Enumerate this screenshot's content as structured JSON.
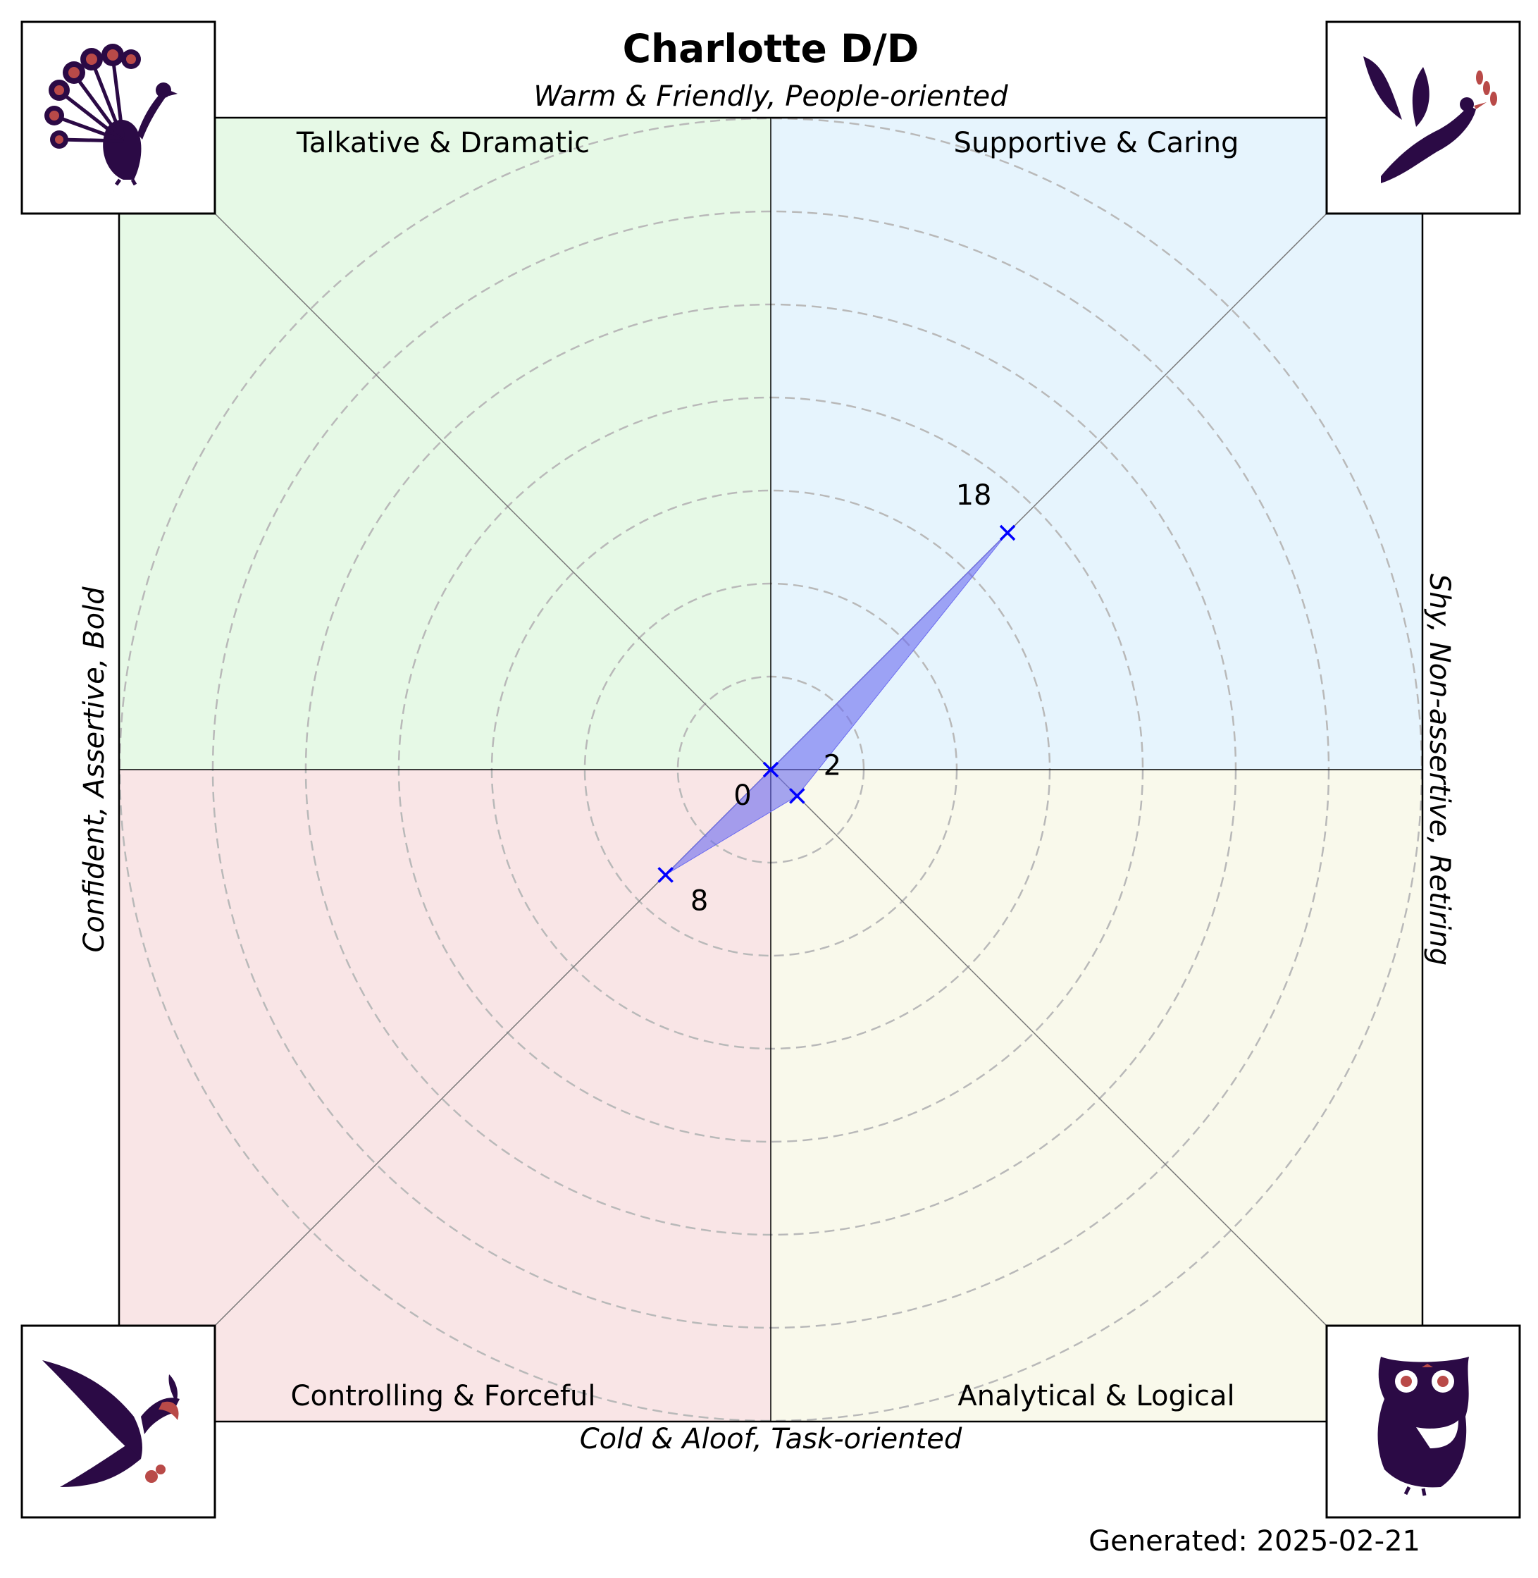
{
  "chart_data": {
    "type": "radar",
    "title": "Charlotte D/D",
    "axis_labels": {
      "top": "Warm & Friendly, People-oriented",
      "bottom": "Cold & Aloof, Task-oriented",
      "left": "Confident, Assertive, Bold",
      "right": "Shy, Non-assertive, Retiring"
    },
    "quadrants": [
      {
        "key": "tl",
        "label": "Talkative & Dramatic",
        "color": "#e6f9e6",
        "icon": "peacock-icon"
      },
      {
        "key": "tr",
        "label": "Supportive & Caring",
        "color": "#e6f4fd",
        "icon": "dove-icon"
      },
      {
        "key": "bl",
        "label": "Controlling & Forceful",
        "color": "#f9e5e6",
        "icon": "eagle-icon"
      },
      {
        "key": "br",
        "label": "Analytical & Logical",
        "color": "#f9f9eb",
        "icon": "owl-icon"
      }
    ],
    "scores": [
      {
        "quadrant": "tl",
        "label": "Talkative & Dramatic",
        "value": 0
      },
      {
        "quadrant": "tr",
        "label": "Supportive & Caring",
        "value": 18
      },
      {
        "quadrant": "br",
        "label": "Analytical & Logical",
        "value": 2
      },
      {
        "quadrant": "bl",
        "label": "Controlling & Forceful",
        "value": 8
      }
    ],
    "value_labels": [
      "0",
      "18",
      "2",
      "8"
    ],
    "rlim": [
      0,
      35
    ],
    "ring_step": 5,
    "series_color": "#0000ff",
    "fill_color": "#6a6af0",
    "grid": true,
    "footer": "Generated: 2025-02-21"
  }
}
